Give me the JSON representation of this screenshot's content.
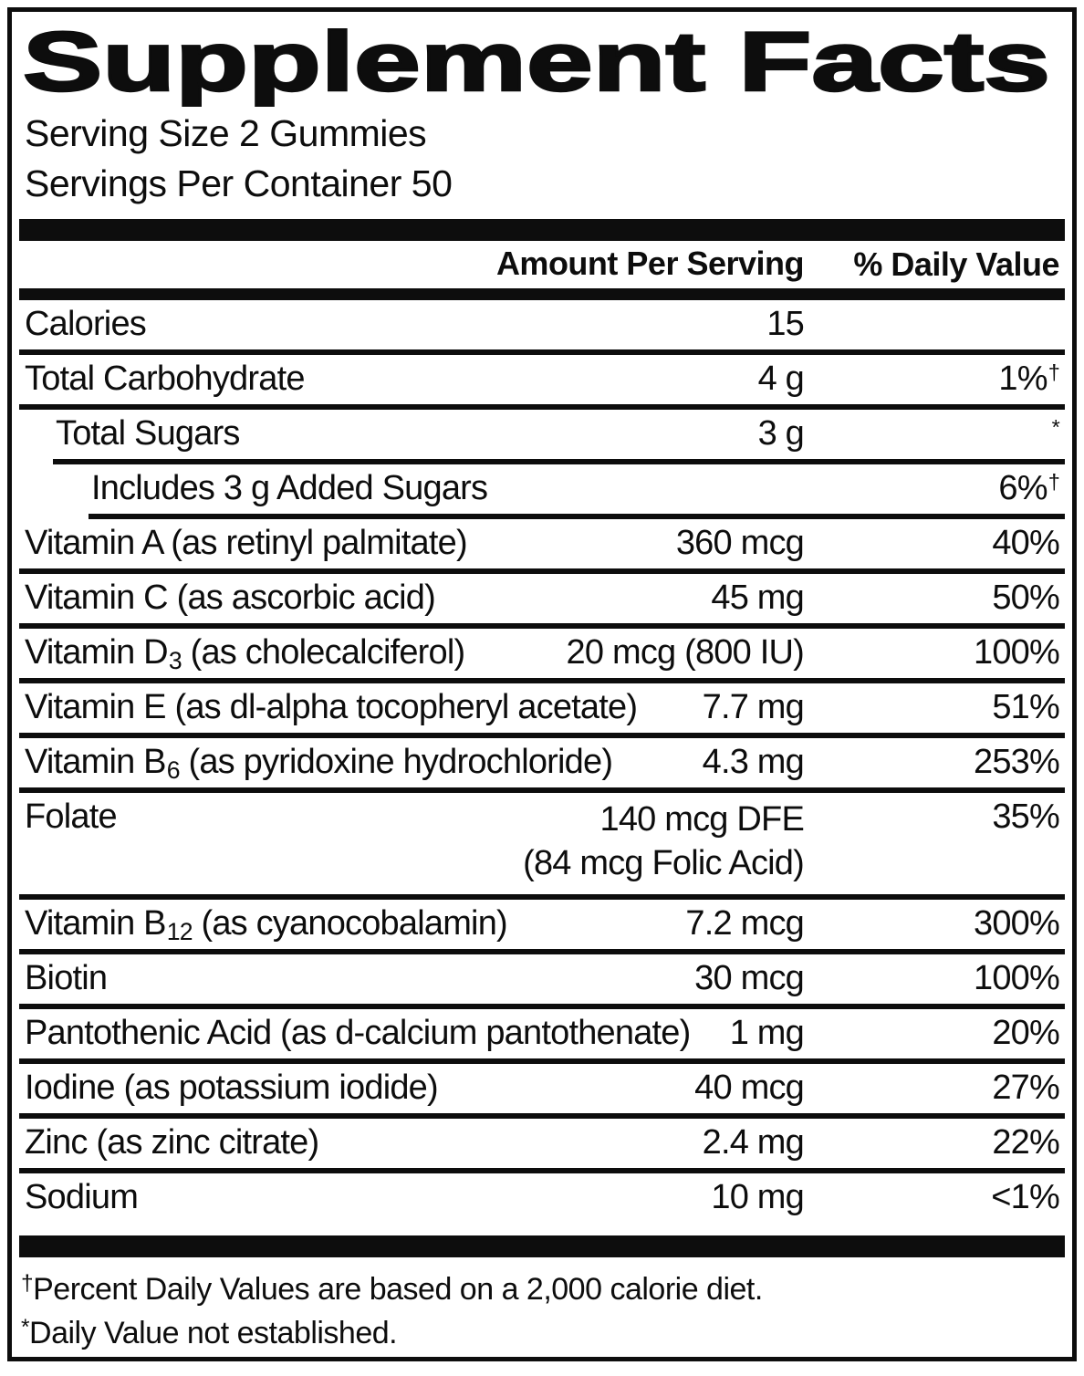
{
  "title": "Supplement Facts",
  "serving_info": {
    "serving_size": "Serving Size 2 Gummies",
    "servings_per_container": "Servings Per Container 50"
  },
  "table": {
    "headers": {
      "amount": "Amount Per Serving",
      "daily_value": "% Daily Value"
    },
    "rows": [
      {
        "label": "Calories",
        "indent": 0,
        "amount": "15",
        "dv": "",
        "dv_mark": ""
      },
      {
        "label": "Total Carbohydrate",
        "indent": 0,
        "amount": "4 g",
        "dv": "1%",
        "dv_mark": "†"
      },
      {
        "label": "Total Sugars",
        "indent": 1,
        "amount": "3 g",
        "dv": "",
        "dv_mark": "*"
      },
      {
        "label": "Includes 3 g Added Sugars",
        "indent": 2,
        "amount": "",
        "dv": "6%",
        "dv_mark": "†"
      },
      {
        "label": "Vitamin A",
        "label_rest": " (as retinyl palmitate)",
        "indent": 0,
        "amount": "360 mcg",
        "dv": "40%",
        "dv_mark": ""
      },
      {
        "label": "Vitamin C",
        "label_rest": " (as ascorbic acid)",
        "indent": 0,
        "amount": "45 mg",
        "dv": "50%",
        "dv_mark": ""
      },
      {
        "label": "Vitamin D",
        "label_sub": "3",
        "label_rest": " (as cholecalciferol)",
        "indent": 0,
        "amount": "20 mcg (800 IU)",
        "dv": "100%",
        "dv_mark": ""
      },
      {
        "label": "Vitamin E",
        "label_rest": " (as dl-alpha tocopheryl acetate)",
        "indent": 0,
        "amount": "7.7 mg",
        "dv": "51%",
        "dv_mark": ""
      },
      {
        "label": "Vitamin B",
        "label_sub": "6",
        "label_rest": " (as pyridoxine hydrochloride)",
        "indent": 0,
        "amount": "4.3 mg",
        "dv": "253%",
        "dv_mark": ""
      },
      {
        "label": "Folate",
        "indent": 0,
        "amount": "140 mcg DFE",
        "amount2": "(84 mcg Folic Acid)",
        "dv": "35%",
        "dv_mark": ""
      },
      {
        "label": "Vitamin B",
        "label_sub": "12",
        "label_rest": " (as cyanocobalamin)",
        "indent": 0,
        "amount": "7.2 mcg",
        "dv": "300%",
        "dv_mark": ""
      },
      {
        "label": "Biotin",
        "indent": 0,
        "amount": "30 mcg",
        "dv": "100%",
        "dv_mark": ""
      },
      {
        "label": "Pantothenic Acid",
        "label_rest": " (as d-calcium pantothenate)",
        "indent": 0,
        "amount": "1 mg",
        "dv": "20%",
        "dv_mark": ""
      },
      {
        "label": "Iodine",
        "label_rest": " (as potassium iodide)",
        "indent": 0,
        "amount": "40 mcg",
        "dv": "27%",
        "dv_mark": ""
      },
      {
        "label": "Zinc",
        "label_rest": " (as zinc citrate)",
        "indent": 0,
        "amount": "2.4 mg",
        "dv": "22%",
        "dv_mark": ""
      },
      {
        "label": "Sodium",
        "indent": 0,
        "amount": "10 mg",
        "dv": "<1%",
        "dv_mark": ""
      }
    ]
  },
  "footnotes": [
    {
      "mark": "†",
      "text": "Percent Daily Values are based on a 2,000 calorie diet."
    },
    {
      "mark": "*",
      "text": "Daily Value not established."
    }
  ],
  "colors": {
    "ink": "#0d0d0d",
    "background": "#ffffff"
  }
}
